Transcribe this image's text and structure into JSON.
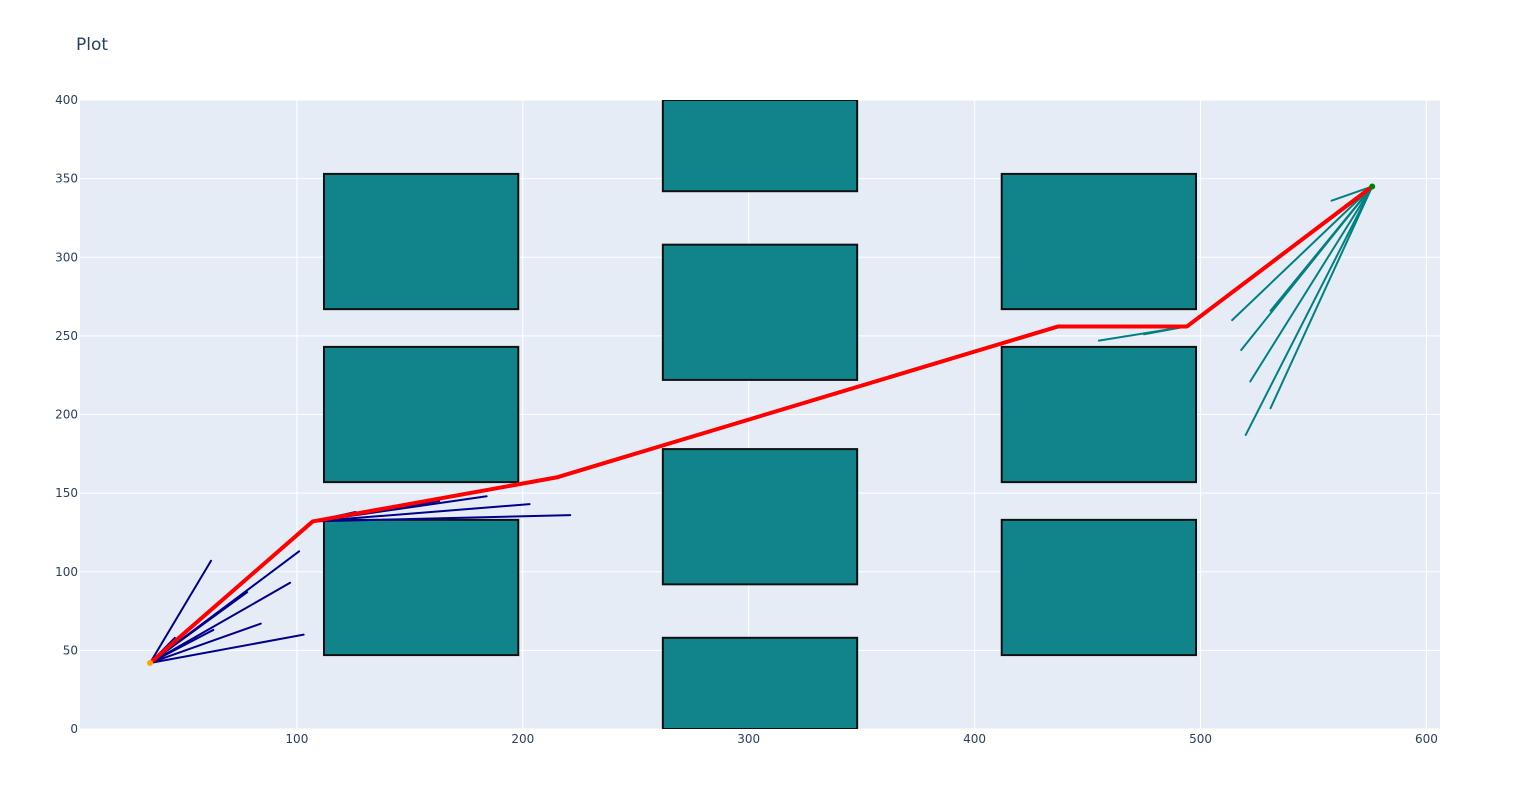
{
  "chart_data": {
    "type": "scatter",
    "title": "Plot",
    "xlabel": "",
    "ylabel": "",
    "xlim": [
      4,
      606
    ],
    "ylim": [
      0,
      400
    ],
    "xticks": [
      100,
      200,
      300,
      400,
      500,
      600
    ],
    "yticks": [
      0,
      50,
      100,
      150,
      200,
      250,
      300,
      350,
      400
    ],
    "grid": true,
    "legend": "none",
    "colors": {
      "plot_bg": "#e5ecf6",
      "grid": "#ffffff",
      "obstacle_fill": "#10848a",
      "obstacle_edge": "#111111",
      "start_tree": "#00008b",
      "goal_tree": "#008080",
      "path": "#ff0000",
      "start_point": "#ffa500",
      "goal_point": "#008000"
    },
    "obstacles": [
      {
        "x0": 112,
        "x1": 198,
        "y0": 47,
        "y1": 133
      },
      {
        "x0": 112,
        "x1": 198,
        "y0": 157,
        "y1": 243
      },
      {
        "x0": 112,
        "x1": 198,
        "y0": 267,
        "y1": 353
      },
      {
        "x0": 262,
        "x1": 348,
        "y0": 0,
        "y1": 58
      },
      {
        "x0": 262,
        "x1": 348,
        "y0": 92,
        "y1": 178
      },
      {
        "x0": 262,
        "x1": 348,
        "y0": 222,
        "y1": 308
      },
      {
        "x0": 262,
        "x1": 348,
        "y0": 342,
        "y1": 400
      },
      {
        "x0": 412,
        "x1": 498,
        "y0": 47,
        "y1": 133
      },
      {
        "x0": 412,
        "x1": 498,
        "y0": 157,
        "y1": 243
      },
      {
        "x0": 412,
        "x1": 498,
        "y0": 267,
        "y1": 353
      }
    ],
    "start": [
      35,
      42
    ],
    "goal": [
      576,
      345
    ],
    "start_tree_edges": [
      [
        [
          35,
          42
        ],
        [
          62,
          107
        ]
      ],
      [
        [
          35,
          42
        ],
        [
          46,
          58
        ]
      ],
      [
        [
          35,
          42
        ],
        [
          78,
          87
        ]
      ],
      [
        [
          35,
          42
        ],
        [
          101,
          113
        ]
      ],
      [
        [
          35,
          42
        ],
        [
          97,
          93
        ]
      ],
      [
        [
          35,
          42
        ],
        [
          63,
          63
        ]
      ],
      [
        [
          35,
          42
        ],
        [
          84,
          67
        ]
      ],
      [
        [
          35,
          42
        ],
        [
          103,
          60
        ]
      ],
      [
        [
          107,
          132
        ],
        [
          126,
          138
        ]
      ],
      [
        [
          107,
          132
        ],
        [
          163,
          145
        ]
      ],
      [
        [
          107,
          132
        ],
        [
          184,
          148
        ]
      ],
      [
        [
          107,
          132
        ],
        [
          203,
          143
        ]
      ],
      [
        [
          107,
          132
        ],
        [
          221,
          136
        ]
      ]
    ],
    "goal_tree_edges": [
      [
        [
          576,
          345
        ],
        [
          558,
          336
        ]
      ],
      [
        [
          576,
          345
        ],
        [
          514,
          260
        ]
      ],
      [
        [
          576,
          345
        ],
        [
          518,
          241
        ]
      ],
      [
        [
          576,
          345
        ],
        [
          522,
          221
        ]
      ],
      [
        [
          576,
          345
        ],
        [
          531,
          266
        ]
      ],
      [
        [
          576,
          345
        ],
        [
          531,
          204
        ]
      ],
      [
        [
          576,
          345
        ],
        [
          520,
          187
        ]
      ],
      [
        [
          494,
          256
        ],
        [
          475,
          251
        ]
      ],
      [
        [
          494,
          256
        ],
        [
          455,
          247
        ]
      ]
    ],
    "path": [
      [
        35,
        42
      ],
      [
        107,
        132
      ],
      [
        215,
        160
      ],
      [
        437,
        256
      ],
      [
        494,
        256
      ],
      [
        576,
        345
      ]
    ]
  }
}
